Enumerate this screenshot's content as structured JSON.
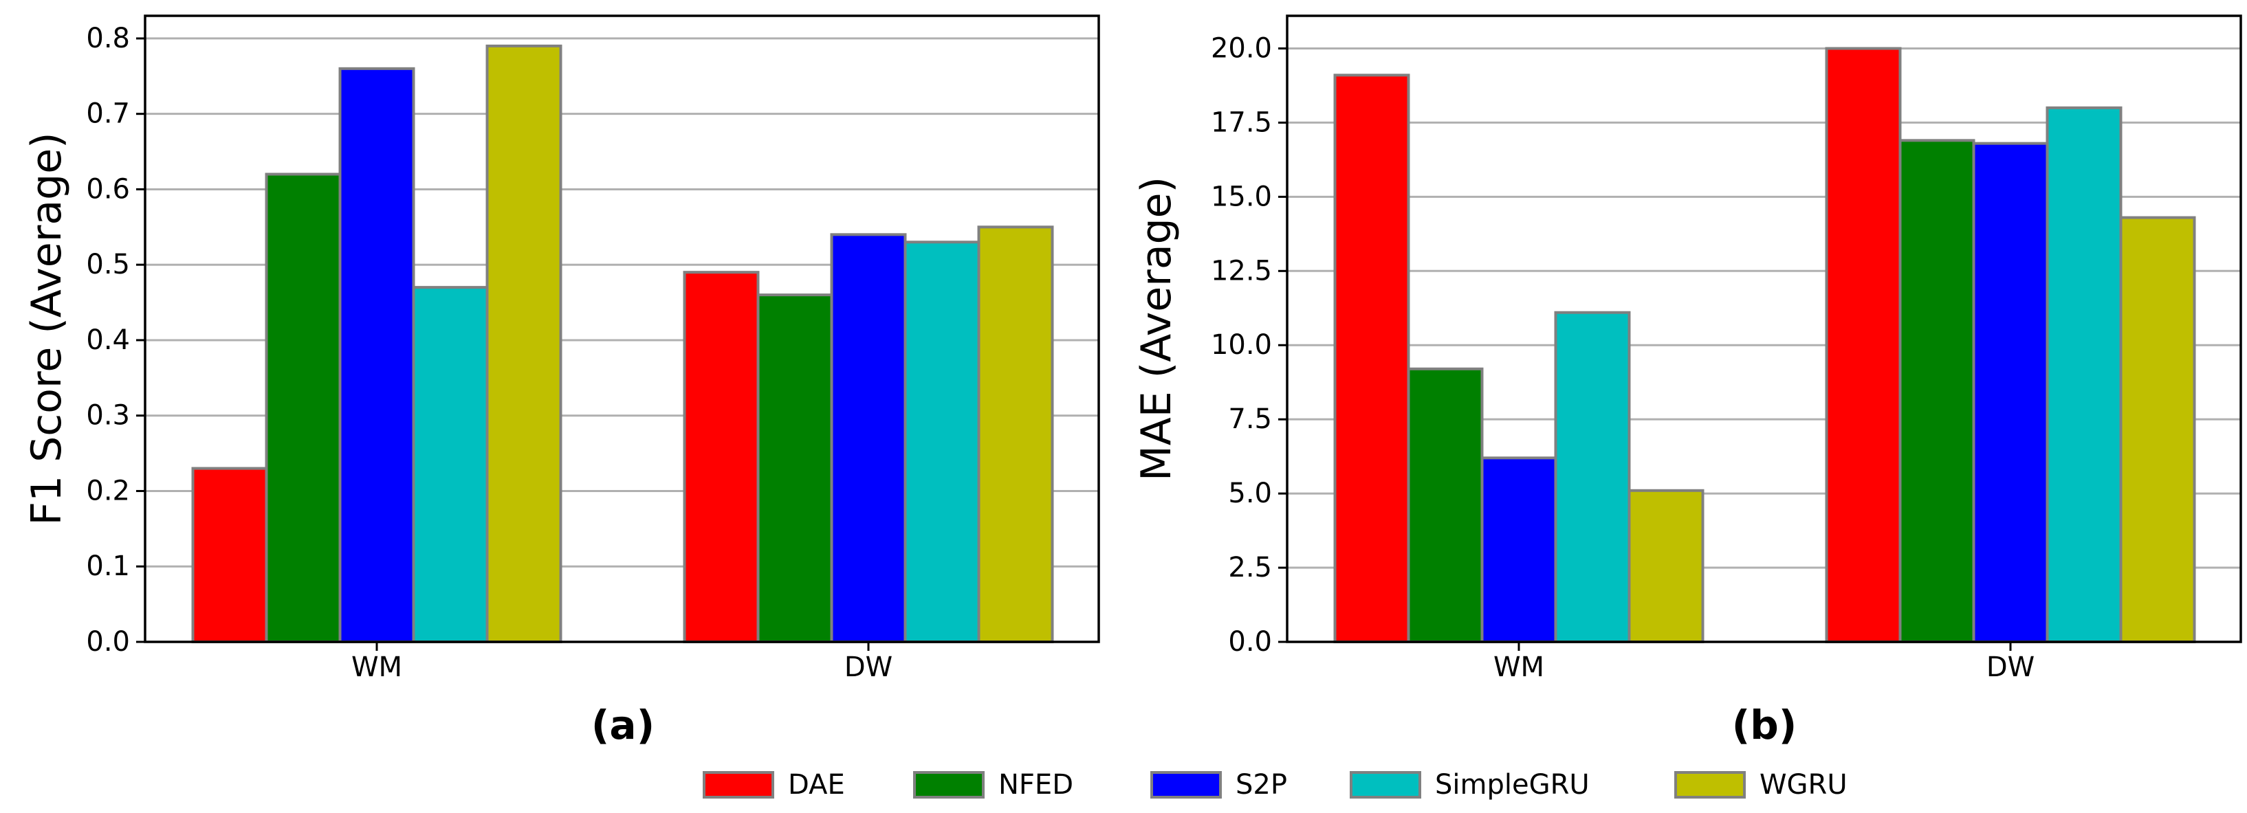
{
  "chart_data": [
    {
      "type": "bar",
      "panel_label": "(a)",
      "title": "",
      "xlabel": "",
      "ylabel": "F1 Score (Average)",
      "categories": [
        "WM",
        "DW"
      ],
      "ylim": [
        0,
        0.83
      ],
      "yticks": [
        "0.0",
        "0.1",
        "0.2",
        "0.3",
        "0.4",
        "0.5",
        "0.6",
        "0.7",
        "0.8"
      ],
      "ytick_values": [
        0.0,
        0.1,
        0.2,
        0.3,
        0.4,
        0.5,
        0.6,
        0.7,
        0.8
      ],
      "grid": "horizontal",
      "series": [
        {
          "name": "DAE",
          "values": [
            0.23,
            0.49
          ]
        },
        {
          "name": "NFED",
          "values": [
            0.62,
            0.46
          ]
        },
        {
          "name": "S2P",
          "values": [
            0.76,
            0.54
          ]
        },
        {
          "name": "SimpleGRU",
          "values": [
            0.47,
            0.53
          ]
        },
        {
          "name": "WGRU",
          "values": [
            0.79,
            0.55
          ]
        }
      ]
    },
    {
      "type": "bar",
      "panel_label": "(b)",
      "title": "",
      "xlabel": "",
      "ylabel": "MAE (Average)",
      "categories": [
        "WM",
        "DW"
      ],
      "ylim": [
        0,
        21.1
      ],
      "yticks": [
        "0.0",
        "2.5",
        "5.0",
        "7.5",
        "10.0",
        "12.5",
        "15.0",
        "17.5",
        "20.0"
      ],
      "ytick_values": [
        0.0,
        2.5,
        5.0,
        7.5,
        10.0,
        12.5,
        15.0,
        17.5,
        20.0
      ],
      "grid": "horizontal",
      "series": [
        {
          "name": "DAE",
          "values": [
            19.1,
            20.0
          ]
        },
        {
          "name": "NFED",
          "values": [
            9.2,
            16.9
          ]
        },
        {
          "name": "S2P",
          "values": [
            6.2,
            16.8
          ]
        },
        {
          "name": "SimpleGRU",
          "values": [
            11.1,
            18.0
          ]
        },
        {
          "name": "WGRU",
          "values": [
            5.1,
            14.3
          ]
        }
      ]
    }
  ],
  "legend": {
    "position": "bottom-center",
    "items": [
      {
        "name": "DAE",
        "color": "#ff0000"
      },
      {
        "name": "NFED",
        "color": "#008000"
      },
      {
        "name": "S2P",
        "color": "#0000ff"
      },
      {
        "name": "SimpleGRU",
        "color": "#00bfbf"
      },
      {
        "name": "WGRU",
        "color": "#bfbf00"
      }
    ]
  },
  "colors": {
    "bar_edge": "#808080",
    "grid": "#b0b0b0",
    "axis": "#000000"
  }
}
